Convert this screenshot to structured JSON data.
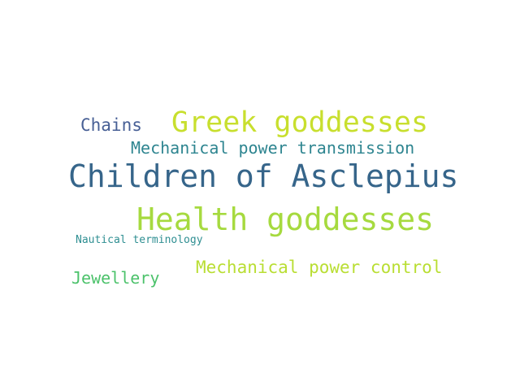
{
  "words": [
    {
      "id": "greek",
      "text": "Greek goddesses",
      "color": "#c8df2e"
    },
    {
      "id": "chains",
      "text": "Chains",
      "color": "#475f95"
    },
    {
      "id": "mpt",
      "text": "Mechanical power transmission",
      "color": "#2e8590"
    },
    {
      "id": "asclepius",
      "text": "Children of Asclepius",
      "color": "#36658a"
    },
    {
      "id": "health",
      "text": "Health goddesses",
      "color": "#a6da3f"
    },
    {
      "id": "nautical",
      "text": "Nautical terminology",
      "color": "#2f8f92"
    },
    {
      "id": "mpc",
      "text": "Mechanical power control",
      "color": "#b9de33"
    },
    {
      "id": "jewellery",
      "text": "Jewellery",
      "color": "#4cc26b"
    }
  ]
}
